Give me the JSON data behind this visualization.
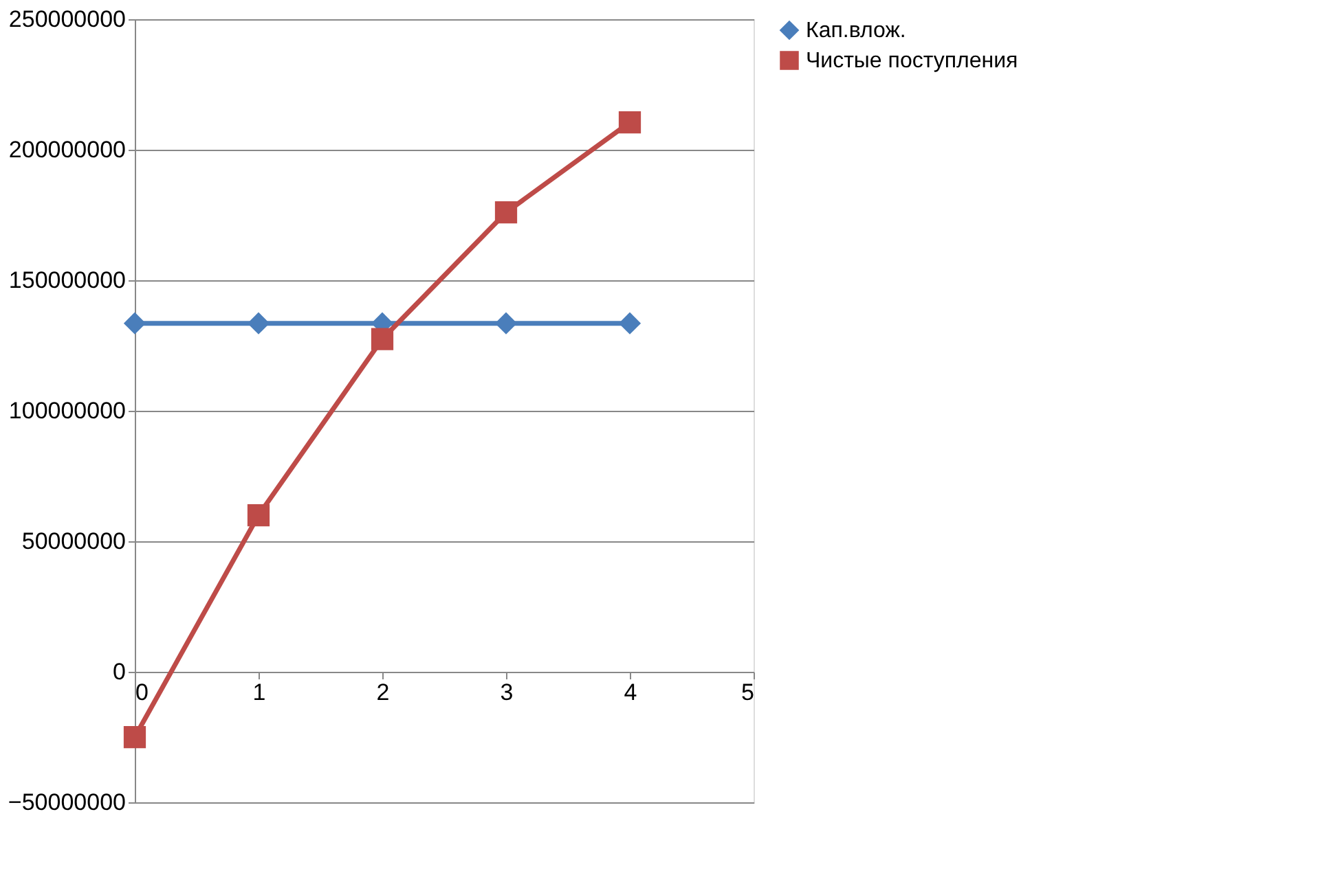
{
  "chart_data": {
    "type": "line",
    "x": [
      0,
      1,
      2,
      3,
      4
    ],
    "series": [
      {
        "name": "Кап.влож.",
        "color": "#4a7ebb",
        "marker": "diamond",
        "values": [
          133500000,
          133500000,
          133500000,
          133500000,
          133500000
        ]
      },
      {
        "name": "Чистые поступления",
        "color": "#be4b48",
        "marker": "square",
        "values": [
          -25000000,
          60000000,
          127500000,
          176000000,
          210500000
        ]
      }
    ],
    "xlim": [
      0,
      5
    ],
    "xticks": [
      0,
      1,
      2,
      3,
      4,
      5
    ],
    "ylim": [
      -50000000,
      250000000
    ],
    "yticks": [
      -50000000,
      0,
      50000000,
      100000000,
      150000000,
      200000000,
      250000000
    ],
    "grid": "y",
    "legend": "right",
    "line_style": "solid"
  }
}
